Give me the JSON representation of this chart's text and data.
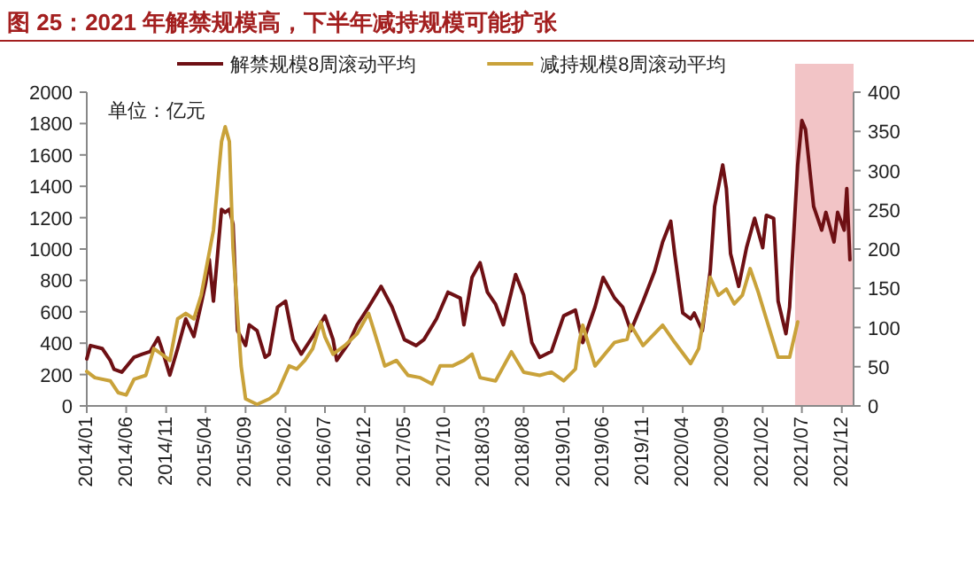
{
  "chart_data": {
    "type": "line",
    "title": "图 25：2021 年解禁规模高，下半年减持规模可能扩张",
    "annotations": [
      "单位：亿元"
    ],
    "xlim": [
      "2014-01-01",
      "2022-01-15"
    ],
    "xticks": [
      {
        "value": "2014-01",
        "label": "2014/01"
      },
      {
        "value": "2014-06",
        "label": "2014/06"
      },
      {
        "value": "2014-11",
        "label": "2014/11"
      },
      {
        "value": "2015-04",
        "label": "2015/04"
      },
      {
        "value": "2015-09",
        "label": "2015/09"
      },
      {
        "value": "2016-02",
        "label": "2016/02"
      },
      {
        "value": "2016-07",
        "label": "2016/07"
      },
      {
        "value": "2016-12",
        "label": "2016/12"
      },
      {
        "value": "2017-05",
        "label": "2017/05"
      },
      {
        "value": "2017-10",
        "label": "2017/10"
      },
      {
        "value": "2018-03",
        "label": "2018/03"
      },
      {
        "value": "2018-08",
        "label": "2018/08"
      },
      {
        "value": "2019-01",
        "label": "2019/01"
      },
      {
        "value": "2019-06",
        "label": "2019/06"
      },
      {
        "value": "2019-11",
        "label": "2019/11"
      },
      {
        "value": "2020-04",
        "label": "2020/04"
      },
      {
        "value": "2020-09",
        "label": "2020/09"
      },
      {
        "value": "2021-02",
        "label": "2021/02"
      },
      {
        "value": "2021-07",
        "label": "2021/07"
      },
      {
        "value": "2021-12",
        "label": "2021/12"
      }
    ],
    "ylim": [
      0,
      2000
    ],
    "yticks": [
      0,
      200,
      400,
      600,
      800,
      1000,
      1200,
      1400,
      1600,
      1800,
      2000
    ],
    "y2lim": [
      0,
      400
    ],
    "y2ticks": [
      0,
      50,
      100,
      150,
      200,
      250,
      300,
      350,
      400
    ],
    "legend": "top",
    "bands": [
      {
        "axis": "x",
        "from": "2021-06-05",
        "to": "2022-01-15",
        "color": "#f2c4c6"
      }
    ],
    "series": [
      {
        "name": "解禁规模8周滚动平均",
        "color": "#6e1014",
        "x": [
          "2014-01-01",
          "2014-01-15",
          "2014-03-01",
          "2014-04-01",
          "2014-04-15",
          "2014-05-15",
          "2014-07-01",
          "2014-08-01",
          "2014-09-01",
          "2014-10-01",
          "2014-10-15",
          "2014-11-15",
          "2014-12-15",
          "2015-01-15",
          "2015-02-15",
          "2015-03-15",
          "2015-04-01",
          "2015-04-15",
          "2015-05-01",
          "2015-06-01",
          "2015-06-15",
          "2015-07-01",
          "2015-07-15",
          "2015-08-01",
          "2015-09-01",
          "2015-09-15",
          "2015-10-15",
          "2015-11-15",
          "2015-12-01",
          "2016-01-01",
          "2016-02-01",
          "2016-03-01",
          "2016-04-01",
          "2016-05-15",
          "2016-07-01",
          "2016-08-01",
          "2016-08-15",
          "2016-10-01",
          "2016-11-01",
          "2016-12-15",
          "2017-02-01",
          "2017-03-15",
          "2017-05-01",
          "2017-06-15",
          "2017-07-15",
          "2017-09-01",
          "2017-10-15",
          "2017-12-01",
          "2017-12-15",
          "2018-01-15",
          "2018-02-15",
          "2018-03-15",
          "2018-04-15",
          "2018-05-15",
          "2018-07-01",
          "2018-08-01",
          "2018-09-01",
          "2018-10-01",
          "2018-11-15",
          "2019-01-01",
          "2019-02-15",
          "2019-03-15",
          "2019-05-01",
          "2019-06-01",
          "2019-07-15",
          "2019-08-15",
          "2019-09-15",
          "2019-11-01",
          "2019-12-15",
          "2020-01-15",
          "2020-02-15",
          "2020-03-01",
          "2020-04-01",
          "2020-05-01",
          "2020-05-15",
          "2020-06-15",
          "2020-07-15",
          "2020-08-01",
          "2020-09-01",
          "2020-09-15",
          "2020-10-01",
          "2020-11-01",
          "2020-12-01",
          "2021-01-01",
          "2021-02-01",
          "2021-02-15",
          "2021-03-15",
          "2021-04-01",
          "2021-05-01",
          "2021-05-15",
          "2021-06-15",
          "2021-07-01",
          "2021-07-15",
          "2021-08-15",
          "2021-09-15",
          "2021-10-01",
          "2021-11-01",
          "2021-11-15",
          "2021-12-10",
          "2021-12-20",
          "2022-01-01"
        ],
        "values": [
          300,
          385,
          366,
          290,
          234,
          215,
          310,
          330,
          347,
          434,
          366,
          196,
          366,
          555,
          442,
          650,
          780,
          932,
          668,
          1253,
          1234,
          1253,
          1158,
          480,
          385,
          517,
          480,
          310,
          330,
          630,
          668,
          423,
          330,
          442,
          574,
          423,
          290,
          404,
          517,
          630,
          762,
          630,
          423,
          385,
          423,
          555,
          725,
          687,
          517,
          819,
          913,
          725,
          649,
          517,
          838,
          706,
          404,
          309,
          347,
          574,
          611,
          404,
          630,
          819,
          687,
          630,
          479,
          668,
          857,
          1045,
          1177,
          970,
          592,
          555,
          592,
          479,
          857,
          1272,
          1536,
          1385,
          970,
          762,
          1008,
          1196,
          1008,
          1215,
          1196,
          668,
          460,
          630,
          1536,
          1819,
          1762,
          1272,
          1121,
          1234,
          1045,
          1234,
          1121,
          1385,
          932
        ]
      },
      {
        "name": "减持规模8周滚动平均",
        "color": "#c9a23a",
        "axis": "y2",
        "x": [
          "2014-01-01",
          "2014-02-01",
          "2014-04-01",
          "2014-05-01",
          "2014-06-01",
          "2014-07-01",
          "2014-08-15",
          "2014-09-15",
          "2014-10-15",
          "2014-11-15",
          "2014-12-15",
          "2015-01-15",
          "2015-02-15",
          "2015-03-15",
          "2015-05-01",
          "2015-06-01",
          "2015-06-15",
          "2015-07-01",
          "2015-07-15",
          "2015-08-15",
          "2015-09-01",
          "2015-10-15",
          "2015-12-01",
          "2016-01-01",
          "2016-02-15",
          "2016-03-15",
          "2016-04-15",
          "2016-05-15",
          "2016-06-15",
          "2016-07-01",
          "2016-08-01",
          "2016-09-15",
          "2016-11-01",
          "2016-12-15",
          "2017-01-01",
          "2017-02-15",
          "2017-04-01",
          "2017-05-15",
          "2017-07-01",
          "2017-08-15",
          "2017-09-15",
          "2017-11-01",
          "2017-12-15",
          "2018-01-15",
          "2018-02-15",
          "2018-04-15",
          "2018-06-15",
          "2018-08-01",
          "2018-10-01",
          "2018-11-15",
          "2019-01-01",
          "2019-02-15",
          "2019-03-01",
          "2019-03-15",
          "2019-05-01",
          "2019-07-15",
          "2019-09-01",
          "2019-09-15",
          "2019-11-01",
          "2020-01-15",
          "2020-03-01",
          "2020-05-01",
          "2020-06-01",
          "2020-07-15",
          "2020-08-15",
          "2020-09-15",
          "2020-10-15",
          "2020-11-15",
          "2020-12-15",
          "2021-01-15",
          "2021-02-15",
          "2021-04-01",
          "2021-05-15",
          "2021-06-15"
        ],
        "values": [
          44,
          36,
          32,
          17,
          14,
          34,
          39,
          73,
          66,
          58,
          111,
          118,
          111,
          141,
          224,
          337,
          356,
          337,
          201,
          51,
          9,
          2,
          9,
          17,
          51,
          47,
          58,
          73,
          107,
          88,
          66,
          77,
          92,
          118,
          100,
          51,
          58,
          39,
          36,
          28,
          51,
          51,
          58,
          66,
          36,
          32,
          69,
          43,
          39,
          43,
          32,
          47,
          81,
          103,
          51,
          81,
          85,
          103,
          77,
          103,
          81,
          54,
          73,
          164,
          141,
          149,
          130,
          141,
          175,
          145,
          111,
          62,
          62,
          107
        ]
      }
    ]
  }
}
